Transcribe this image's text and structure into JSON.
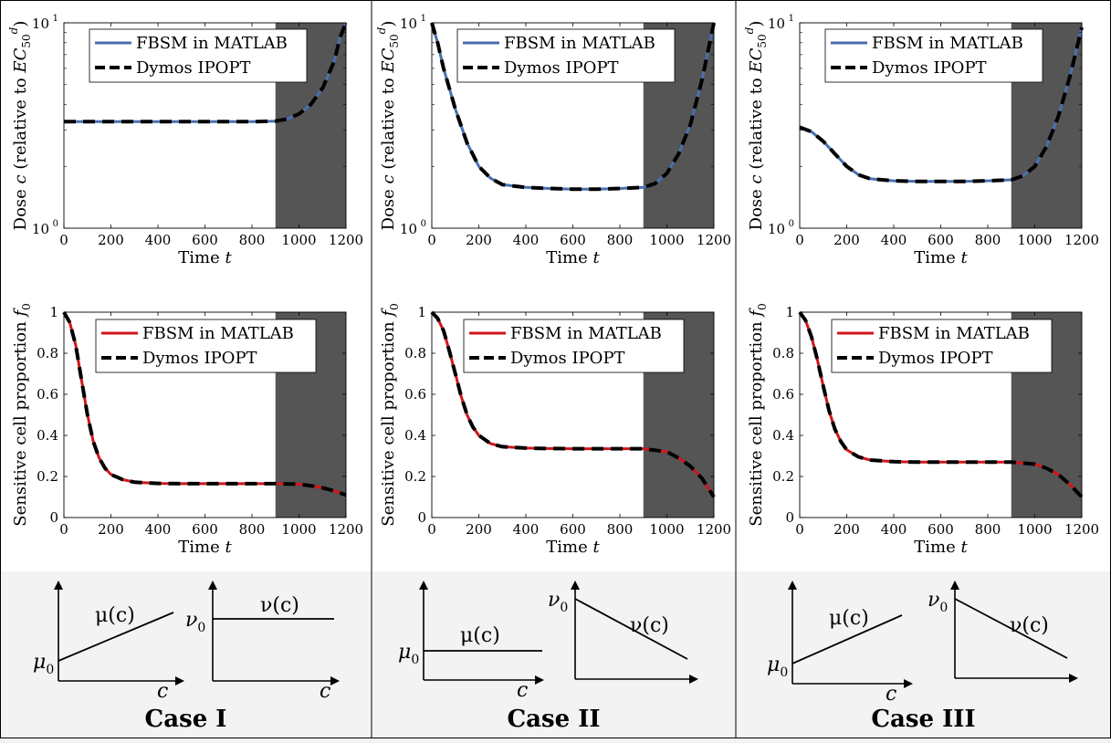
{
  "legend": {
    "fbsm": "FBSM in MATLAB",
    "dymos": "Dymos IPOPT"
  },
  "axes_text": {
    "dose_ylabel": "Dose c (relative to EC50d)",
    "prop_ylabel": "Sensitive cell proportion f0",
    "xlabel": "Time t"
  },
  "colors": {
    "fbsm_dose": "#4a6fae",
    "fbsm_prop": "#d0161c",
    "dymos": "#000000",
    "shade": "#555555",
    "panel_bg": "#f3f3f3"
  },
  "cases": [
    {
      "label": "Case I",
      "mu_label": "μ(c)",
      "nu_label": "ν(c)",
      "mu0_label": "μ0",
      "nu0_label": "ν0",
      "axis_c_label": "c",
      "mu_shape": "increasing",
      "nu_shape": "constant"
    },
    {
      "label": "Case II",
      "mu_label": "μ(c)",
      "nu_label": "ν(c)",
      "mu0_label": "μ0",
      "nu0_label": "ν0",
      "axis_c_label": "c",
      "mu_shape": "constant",
      "nu_shape": "decreasing"
    },
    {
      "label": "Case III",
      "mu_label": "μ(c)",
      "nu_label": "ν(c)",
      "mu0_label": "μ0",
      "nu0_label": "ν0",
      "axis_c_label": "c",
      "mu_shape": "increasing",
      "nu_shape": "decreasing"
    }
  ],
  "chart_data": [
    {
      "type": "line",
      "case": "Case I",
      "quantity": "dose",
      "scale": "log",
      "xlim": [
        0,
        1200
      ],
      "ylim": [
        1,
        10
      ],
      "xticks": [
        0,
        200,
        400,
        600,
        800,
        1000,
        1200
      ],
      "yticks": [
        "10^0",
        "10^1"
      ],
      "shaded_region": [
        900,
        1200
      ],
      "x": [
        0,
        100,
        200,
        300,
        400,
        500,
        600,
        700,
        800,
        900,
        950,
        1000,
        1050,
        1100,
        1150,
        1175,
        1200
      ],
      "series": [
        {
          "name": "FBSM in MATLAB",
          "values": [
            3.3,
            3.3,
            3.3,
            3.3,
            3.3,
            3.3,
            3.3,
            3.3,
            3.3,
            3.32,
            3.4,
            3.6,
            4.0,
            4.8,
            6.5,
            8.5,
            10
          ]
        },
        {
          "name": "Dymos IPOPT",
          "values": [
            3.3,
            3.3,
            3.3,
            3.3,
            3.3,
            3.3,
            3.3,
            3.3,
            3.3,
            3.32,
            3.4,
            3.6,
            4.0,
            4.8,
            6.5,
            8.5,
            10
          ]
        }
      ]
    },
    {
      "type": "line",
      "case": "Case II",
      "quantity": "dose",
      "scale": "log",
      "xlim": [
        0,
        1200
      ],
      "ylim": [
        1,
        10
      ],
      "xticks": [
        0,
        200,
        400,
        600,
        800,
        1000,
        1200
      ],
      "yticks": [
        "10^0",
        "10^1"
      ],
      "shaded_region": [
        900,
        1200
      ],
      "x": [
        0,
        25,
        50,
        100,
        150,
        200,
        250,
        300,
        400,
        500,
        600,
        700,
        800,
        900,
        950,
        1000,
        1050,
        1100,
        1150,
        1200
      ],
      "series": [
        {
          "name": "FBSM in MATLAB",
          "values": [
            10,
            8.0,
            6.0,
            3.8,
            2.6,
            2.0,
            1.75,
            1.63,
            1.58,
            1.56,
            1.55,
            1.55,
            1.56,
            1.58,
            1.65,
            1.85,
            2.3,
            3.2,
            5.3,
            10
          ]
        },
        {
          "name": "Dymos IPOPT",
          "values": [
            10,
            8.0,
            6.0,
            3.8,
            2.6,
            2.0,
            1.75,
            1.63,
            1.58,
            1.56,
            1.55,
            1.55,
            1.56,
            1.58,
            1.65,
            1.85,
            2.3,
            3.2,
            5.3,
            10
          ]
        }
      ]
    },
    {
      "type": "line",
      "case": "Case III",
      "quantity": "dose",
      "scale": "log",
      "xlim": [
        0,
        1200
      ],
      "ylim": [
        1,
        10
      ],
      "xticks": [
        0,
        200,
        400,
        600,
        800,
        1000,
        1200
      ],
      "yticks": [
        "10^0",
        "10^1"
      ],
      "shaded_region": [
        900,
        1200
      ],
      "x": [
        0,
        50,
        100,
        150,
        200,
        250,
        300,
        400,
        500,
        600,
        700,
        800,
        900,
        950,
        1000,
        1050,
        1100,
        1150,
        1200
      ],
      "series": [
        {
          "name": "FBSM in MATLAB",
          "values": [
            3.1,
            2.95,
            2.65,
            2.3,
            2.0,
            1.82,
            1.74,
            1.7,
            1.69,
            1.69,
            1.69,
            1.7,
            1.72,
            1.8,
            2.0,
            2.5,
            3.5,
            5.5,
            9.5
          ]
        },
        {
          "name": "Dymos IPOPT",
          "values": [
            3.1,
            2.95,
            2.65,
            2.3,
            2.0,
            1.82,
            1.74,
            1.7,
            1.69,
            1.69,
            1.69,
            1.7,
            1.72,
            1.8,
            2.0,
            2.5,
            3.5,
            5.5,
            9.5
          ]
        }
      ]
    },
    {
      "type": "line",
      "case": "Case I",
      "quantity": "sensitive proportion",
      "scale": "linear",
      "xlim": [
        0,
        1200
      ],
      "ylim": [
        0,
        1
      ],
      "xticks": [
        0,
        200,
        400,
        600,
        800,
        1000,
        1200
      ],
      "yticks": [
        0,
        0.2,
        0.4,
        0.6,
        0.8,
        1
      ],
      "shaded_region": [
        900,
        1200
      ],
      "x": [
        0,
        25,
        50,
        75,
        100,
        125,
        150,
        175,
        200,
        250,
        300,
        400,
        500,
        600,
        700,
        800,
        900,
        1000,
        1050,
        1100,
        1150,
        1200
      ],
      "series": [
        {
          "name": "FBSM in MATLAB",
          "values": [
            1.0,
            0.95,
            0.84,
            0.67,
            0.5,
            0.37,
            0.29,
            0.24,
            0.21,
            0.185,
            0.172,
            0.166,
            0.165,
            0.165,
            0.165,
            0.165,
            0.165,
            0.162,
            0.155,
            0.145,
            0.13,
            0.11
          ]
        },
        {
          "name": "Dymos IPOPT",
          "values": [
            1.0,
            0.95,
            0.84,
            0.67,
            0.5,
            0.37,
            0.29,
            0.24,
            0.21,
            0.185,
            0.172,
            0.166,
            0.165,
            0.165,
            0.165,
            0.165,
            0.165,
            0.162,
            0.155,
            0.145,
            0.13,
            0.11
          ]
        }
      ]
    },
    {
      "type": "line",
      "case": "Case II",
      "quantity": "sensitive proportion",
      "scale": "linear",
      "xlim": [
        0,
        1200
      ],
      "ylim": [
        0,
        1
      ],
      "xticks": [
        0,
        200,
        400,
        600,
        800,
        1000,
        1200
      ],
      "yticks": [
        0,
        0.2,
        0.4,
        0.6,
        0.8,
        1
      ],
      "shaded_region": [
        900,
        1200
      ],
      "x": [
        0,
        25,
        50,
        75,
        100,
        125,
        150,
        175,
        200,
        250,
        300,
        400,
        500,
        600,
        700,
        800,
        900,
        1000,
        1050,
        1100,
        1150,
        1200
      ],
      "series": [
        {
          "name": "FBSM in MATLAB",
          "values": [
            1.0,
            0.97,
            0.91,
            0.81,
            0.7,
            0.59,
            0.5,
            0.44,
            0.4,
            0.36,
            0.345,
            0.338,
            0.336,
            0.335,
            0.335,
            0.335,
            0.335,
            0.32,
            0.29,
            0.25,
            0.19,
            0.1
          ]
        },
        {
          "name": "Dymos IPOPT",
          "values": [
            1.0,
            0.97,
            0.91,
            0.81,
            0.7,
            0.59,
            0.5,
            0.44,
            0.4,
            0.36,
            0.345,
            0.338,
            0.336,
            0.335,
            0.335,
            0.335,
            0.335,
            0.32,
            0.29,
            0.25,
            0.19,
            0.1
          ]
        }
      ]
    },
    {
      "type": "line",
      "case": "Case III",
      "quantity": "sensitive proportion",
      "scale": "linear",
      "xlim": [
        0,
        1200
      ],
      "ylim": [
        0,
        1
      ],
      "xticks": [
        0,
        200,
        400,
        600,
        800,
        1000,
        1200
      ],
      "yticks": [
        0,
        0.2,
        0.4,
        0.6,
        0.8,
        1
      ],
      "shaded_region": [
        900,
        1200
      ],
      "x": [
        0,
        25,
        50,
        75,
        100,
        125,
        150,
        175,
        200,
        250,
        300,
        400,
        500,
        600,
        700,
        800,
        900,
        1000,
        1050,
        1100,
        1150,
        1200
      ],
      "series": [
        {
          "name": "FBSM in MATLAB",
          "values": [
            1.0,
            0.96,
            0.88,
            0.77,
            0.64,
            0.52,
            0.43,
            0.37,
            0.33,
            0.295,
            0.28,
            0.272,
            0.27,
            0.27,
            0.27,
            0.27,
            0.27,
            0.26,
            0.24,
            0.21,
            0.16,
            0.1
          ]
        },
        {
          "name": "Dymos IPOPT",
          "values": [
            1.0,
            0.96,
            0.88,
            0.77,
            0.64,
            0.52,
            0.43,
            0.37,
            0.33,
            0.295,
            0.28,
            0.272,
            0.27,
            0.27,
            0.27,
            0.27,
            0.27,
            0.26,
            0.24,
            0.21,
            0.16,
            0.1
          ]
        }
      ]
    }
  ]
}
